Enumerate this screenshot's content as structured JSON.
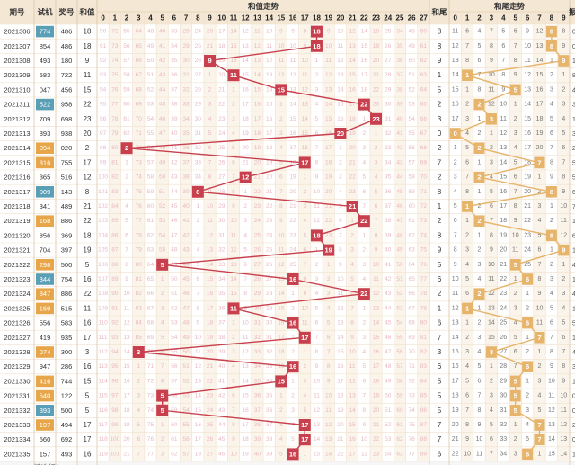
{
  "headers": {
    "issue": "期号",
    "trial": "试机",
    "award": "奖号",
    "sum": "和值",
    "sum_trend": "和值走势",
    "tail": "和尾",
    "tail_trend": "和尾走势",
    "amp": "振"
  },
  "footer": {
    "label": "精选行1"
  },
  "colors": {
    "sum_marker": "#c8404e",
    "tail_marker": "#e6b46a",
    "trial_blue": "#5b9fb6",
    "trial_orange": "#e8a64a",
    "header_bg": "#f4e7d4",
    "col_band": "#fbf4ea",
    "grid": "#efe1cc",
    "miss_pink": "#e8b8c0",
    "miss_dark": "#777777"
  },
  "chart_data": {
    "type": "table",
    "sum_range": [
      0,
      27
    ],
    "tail_range": [
      0,
      9
    ],
    "rows": [
      {
        "issue": "2021306",
        "trial": "774",
        "trial_style": "blue",
        "award": "486",
        "sum": 18,
        "tail": 8
      },
      {
        "issue": "2021307",
        "trial": "854",
        "trial_style": "plain",
        "award": "486",
        "sum": 18,
        "tail": 8
      },
      {
        "issue": "2021308",
        "trial": "493",
        "trial_style": "plain",
        "award": "180",
        "sum": 9,
        "tail": 9
      },
      {
        "issue": "2021309",
        "trial": "583",
        "trial_style": "plain",
        "award": "722",
        "sum": 11,
        "tail": 1
      },
      {
        "issue": "2021310",
        "trial": "047",
        "trial_style": "plain",
        "award": "456",
        "sum": 15,
        "tail": 5
      },
      {
        "issue": "2021311",
        "trial": "522",
        "trial_style": "blue",
        "award": "958",
        "sum": 22,
        "tail": 2
      },
      {
        "issue": "2021312",
        "trial": "709",
        "trial_style": "plain",
        "award": "698",
        "sum": 23,
        "tail": 3
      },
      {
        "issue": "2021313",
        "trial": "893",
        "trial_style": "plain",
        "award": "938",
        "sum": 20,
        "tail": 0
      },
      {
        "issue": "2021314",
        "trial": "094",
        "trial_style": "orange",
        "award": "020",
        "sum": 2,
        "tail": 2
      },
      {
        "issue": "2021315",
        "trial": "816",
        "trial_style": "orange",
        "award": "755",
        "sum": 17,
        "tail": 7
      },
      {
        "issue": "2021316",
        "trial": "365",
        "trial_style": "plain",
        "award": "516",
        "sum": 12,
        "tail": 2
      },
      {
        "issue": "2021317",
        "trial": "009",
        "trial_style": "blue",
        "award": "143",
        "sum": 8,
        "tail": 8
      },
      {
        "issue": "2021318",
        "trial": "341",
        "trial_style": "plain",
        "award": "489",
        "sum": 21,
        "tail": 1
      },
      {
        "issue": "2021319",
        "trial": "168",
        "trial_style": "orange",
        "award": "886",
        "sum": 22,
        "tail": 2
      },
      {
        "issue": "2021320",
        "trial": "856",
        "trial_style": "plain",
        "award": "369",
        "sum": 18,
        "tail": 8
      },
      {
        "issue": "2021321",
        "trial": "704",
        "trial_style": "plain",
        "award": "397",
        "sum": 19,
        "tail": 9
      },
      {
        "issue": "2021322",
        "trial": "298",
        "trial_style": "orange",
        "award": "500",
        "sum": 5,
        "tail": 5
      },
      {
        "issue": "2021323",
        "trial": "344",
        "trial_style": "blue",
        "award": "754",
        "sum": 16,
        "tail": 6
      },
      {
        "issue": "2021324",
        "trial": "847",
        "trial_style": "orange",
        "award": "886",
        "sum": 22,
        "tail": 2
      },
      {
        "issue": "2021325",
        "trial": "169",
        "trial_style": "orange",
        "award": "515",
        "sum": 11,
        "tail": 1
      },
      {
        "issue": "2021326",
        "trial": "556",
        "trial_style": "plain",
        "award": "583",
        "sum": 16,
        "tail": 6
      },
      {
        "issue": "2021327",
        "trial": "419",
        "trial_style": "plain",
        "award": "935",
        "sum": 17,
        "tail": 7
      },
      {
        "issue": "2021328",
        "trial": "074",
        "trial_style": "orange",
        "award": "300",
        "sum": 3,
        "tail": 3
      },
      {
        "issue": "2021329",
        "trial": "947",
        "trial_style": "plain",
        "award": "286",
        "sum": 16,
        "tail": 6
      },
      {
        "issue": "2021330",
        "trial": "416",
        "trial_style": "orange",
        "award": "744",
        "sum": 15,
        "tail": 5
      },
      {
        "issue": "2021331",
        "trial": "540",
        "trial_style": "orange",
        "award": "122",
        "sum": 5,
        "tail": 5
      },
      {
        "issue": "2021332",
        "trial": "393",
        "trial_style": "blue",
        "award": "500",
        "sum": 5,
        "tail": 5
      },
      {
        "issue": "2021333",
        "trial": "197",
        "trial_style": "orange",
        "award": "494",
        "sum": 17,
        "tail": 7
      },
      {
        "issue": "2021334",
        "trial": "560",
        "trial_style": "plain",
        "award": "692",
        "sum": 17,
        "tail": 7
      },
      {
        "issue": "2021335",
        "trial": "157",
        "trial_style": "plain",
        "award": "493",
        "sum": 16,
        "tail": 6
      }
    ]
  }
}
